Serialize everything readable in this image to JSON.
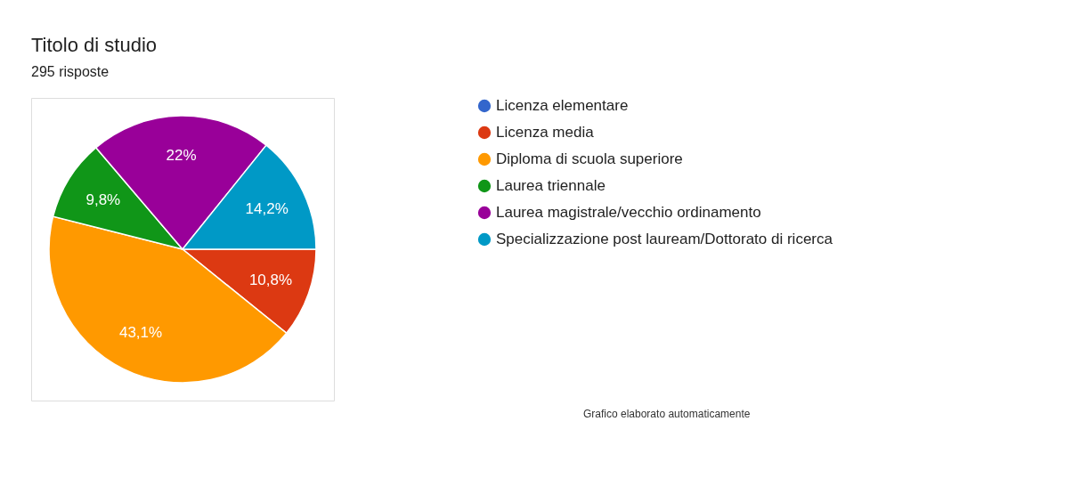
{
  "chart_data": {
    "type": "pie",
    "title": "Titolo di studio",
    "subtitle": "295 risposte",
    "categories": [
      "Licenza elementare",
      "Licenza media",
      "Diploma di scuola superiore",
      "Laurea triennale",
      "Laurea magistrale/vecchio ordinamento",
      "Specializzazione post lauream/Dottorato di ricerca"
    ],
    "values": [
      0,
      10.8,
      43.1,
      9.8,
      22,
      14.2
    ],
    "colors": [
      "#3366cc",
      "#dc3912",
      "#ff9900",
      "#109618",
      "#990099",
      "#0099c6"
    ],
    "value_labels": [
      null,
      "10,8%",
      "43,1%",
      "9,8%",
      "22%",
      "14,2%"
    ],
    "legend": "right",
    "annotations": [
      "Grafico elaborato automaticamente"
    ]
  }
}
